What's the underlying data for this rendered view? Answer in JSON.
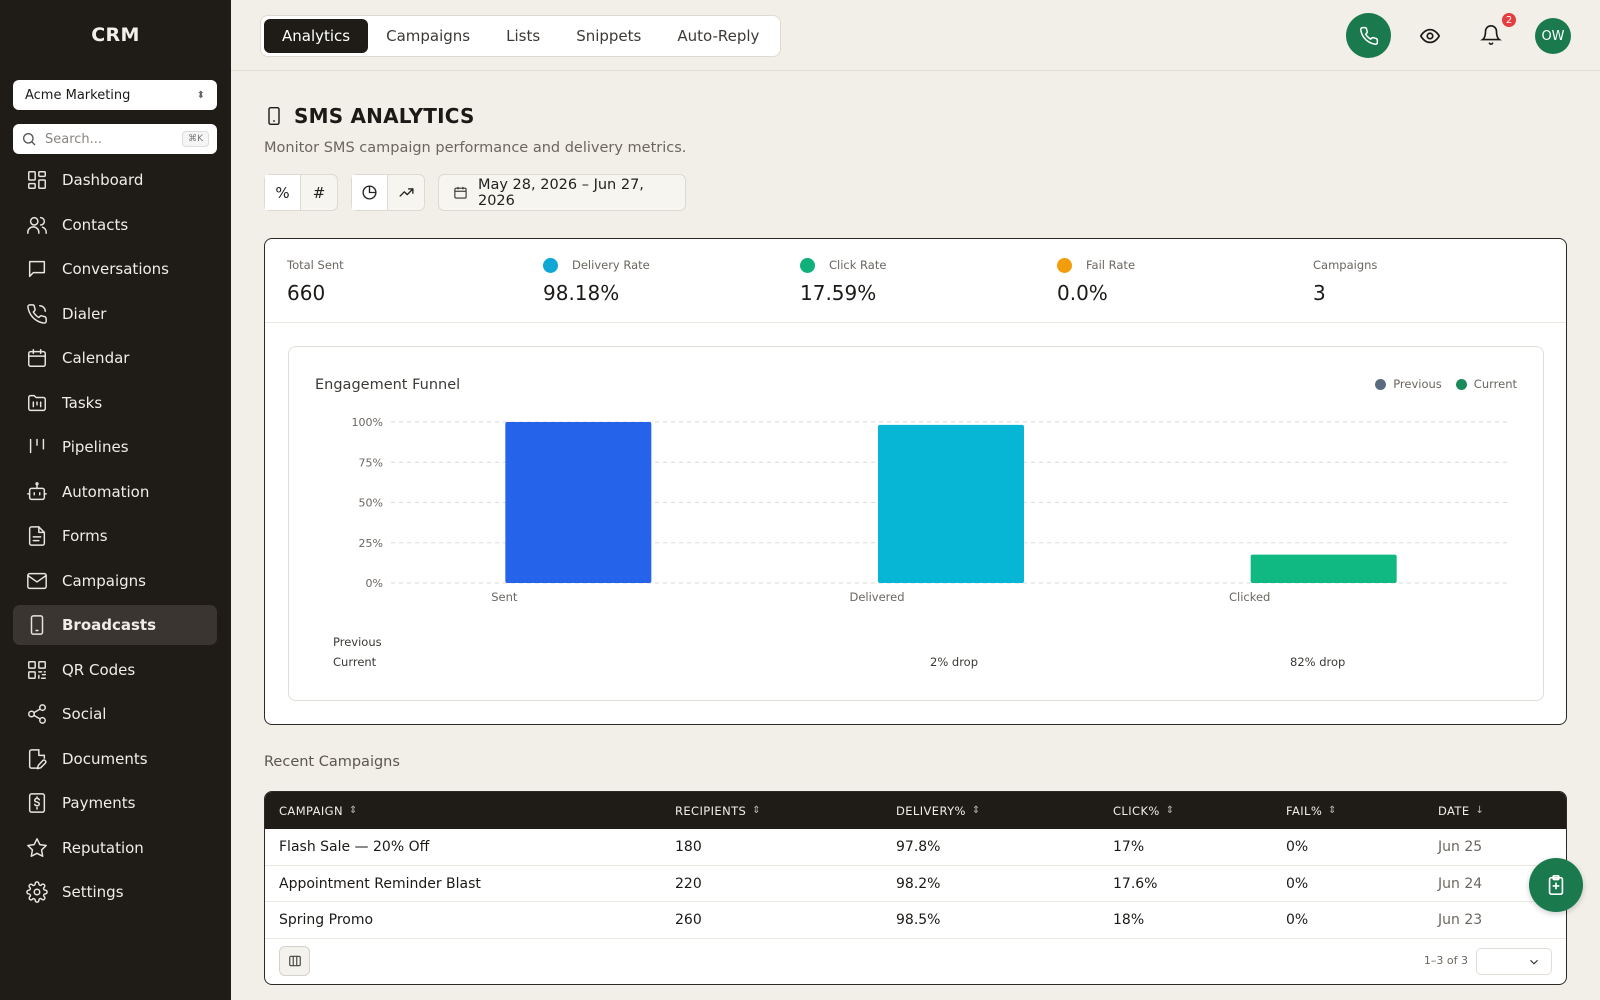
{
  "app": {
    "title": "CRM"
  },
  "sidebar": {
    "org_select": "Acme Marketing",
    "search_placeholder": "Search...",
    "search_shortcut": "⌘K",
    "items": [
      {
        "label": "Dashboard",
        "icon": "dashboard-icon"
      },
      {
        "label": "Contacts",
        "icon": "contacts-icon"
      },
      {
        "label": "Conversations",
        "icon": "conversations-icon"
      },
      {
        "label": "Dialer",
        "icon": "phone-icon"
      },
      {
        "label": "Calendar",
        "icon": "calendar-icon"
      },
      {
        "label": "Tasks",
        "icon": "tasks-icon"
      },
      {
        "label": "Pipelines",
        "icon": "pipelines-icon"
      },
      {
        "label": "Automation",
        "icon": "robot-icon"
      },
      {
        "label": "Forms",
        "icon": "form-icon"
      },
      {
        "label": "Campaigns",
        "icon": "mail-icon"
      },
      {
        "label": "Broadcasts",
        "icon": "mobile-icon",
        "active": true
      },
      {
        "label": "QR Codes",
        "icon": "qr-icon"
      },
      {
        "label": "Social",
        "icon": "share-icon"
      },
      {
        "label": "Documents",
        "icon": "document-edit-icon"
      },
      {
        "label": "Payments",
        "icon": "dollar-icon"
      },
      {
        "label": "Reputation",
        "icon": "star-icon"
      },
      {
        "label": "Settings",
        "icon": "gear-icon"
      }
    ]
  },
  "topbar": {
    "tabs": [
      "Analytics",
      "Campaigns",
      "Lists",
      "Snippets",
      "Auto-Reply"
    ],
    "active_tab": "Analytics",
    "notification_count": "2",
    "avatar_initials": "OW"
  },
  "header": {
    "title": "SMS ANALYTICS",
    "subtitle": "Monitor SMS campaign performance and delivery metrics.",
    "date_range": "May 28, 2026 – Jun 27, 2026"
  },
  "stats": [
    {
      "label": "Total Sent",
      "value": "660",
      "dot": null
    },
    {
      "label": "Delivery Rate",
      "value": "98.18%",
      "dot": "#0fa8d4"
    },
    {
      "label": "Click Rate",
      "value": "17.59%",
      "dot": "#10b07a"
    },
    {
      "label": "Fail Rate",
      "value": "0.0%",
      "dot": "#f29d0b"
    },
    {
      "label": "Campaigns",
      "value": "3",
      "dot": null
    }
  ],
  "funnel": {
    "title": "Engagement Funnel",
    "row_previous": "Previous",
    "row_current": "Current",
    "drops": [
      "",
      "2% drop",
      "82% drop"
    ]
  },
  "chart_data": {
    "type": "bar",
    "categories": [
      "Sent",
      "Delivered",
      "Clicked"
    ],
    "series": [
      {
        "name": "Previous",
        "values": [
          null,
          null,
          null
        ],
        "color": "#5a6b80"
      },
      {
        "name": "Current",
        "values": [
          100,
          98.18,
          17.59
        ],
        "color": "#1a8a5a"
      }
    ],
    "bar_colors": [
      "#2563eb",
      "#06b6d4",
      "#10b981"
    ],
    "y_ticks": [
      "0%",
      "25%",
      "50%",
      "75%",
      "100%"
    ],
    "ylim": [
      0,
      100
    ],
    "legend": "top-right",
    "grid": true
  },
  "recent": {
    "title": "Recent Campaigns",
    "columns": [
      "CAMPAIGN",
      "RECIPIENTS",
      "DELIVERY%",
      "CLICK%",
      "FAIL%",
      "DATE"
    ],
    "rows": [
      [
        "Flash Sale — 20% Off",
        "180",
        "97.8%",
        "17%",
        "0%",
        "Jun 25"
      ],
      [
        "Appointment Reminder Blast",
        "220",
        "98.2%",
        "17.6%",
        "0%",
        "Jun 24"
      ],
      [
        "Spring Promo",
        "260",
        "98.5%",
        "18%",
        "0%",
        "Jun 23"
      ]
    ],
    "pagination": "1–3 of 3"
  }
}
